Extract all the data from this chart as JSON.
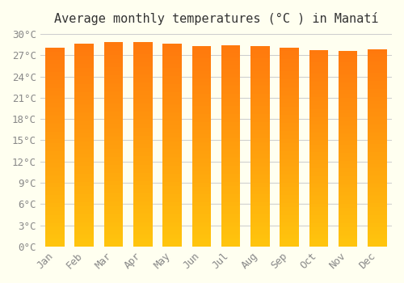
{
  "title": "Average monthly temperatures (°C ) in Manatí",
  "months": [
    "Jan",
    "Feb",
    "Mar",
    "Apr",
    "May",
    "Jun",
    "Jul",
    "Aug",
    "Sep",
    "Oct",
    "Nov",
    "Dec"
  ],
  "values": [
    28.0,
    28.6,
    28.8,
    28.9,
    28.6,
    28.3,
    28.4,
    28.3,
    28.1,
    27.7,
    27.6,
    27.8
  ],
  "ylim": [
    0,
    30
  ],
  "yticks": [
    0,
    3,
    6,
    9,
    12,
    15,
    18,
    21,
    24,
    27,
    30
  ],
  "bar_color_top": "#FFA500",
  "bar_color_bottom": "#FFD700",
  "background_color": "#FFFFF0",
  "grid_color": "#CCCCCC",
  "title_fontsize": 11,
  "tick_fontsize": 9,
  "bar_width": 0.65
}
